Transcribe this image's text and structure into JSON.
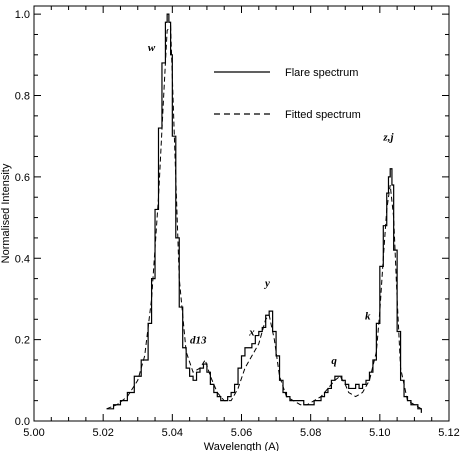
{
  "chart_data": {
    "type": "line",
    "xlabel": "Wavelength (A)",
    "ylabel": "Normalised Intensity",
    "xlim": [
      5.0,
      5.12
    ],
    "ylim": [
      0.0,
      1.02
    ],
    "x_ticks": [
      "5.00",
      "5.02",
      "5.04",
      "5.06",
      "5.08",
      "5.10",
      "5.12"
    ],
    "y_ticks": [
      "0.0",
      "0.2",
      "0.4",
      "0.6",
      "0.8",
      "1.0"
    ],
    "legend_position": "top-right",
    "series": [
      {
        "name": "Flare spectrum",
        "style": "histogram-solid",
        "x": [
          5.021,
          5.023,
          5.025,
          5.027,
          5.029,
          5.031,
          5.033,
          5.034,
          5.035,
          5.036,
          5.037,
          5.038,
          5.0385,
          5.039,
          5.0395,
          5.04,
          5.041,
          5.042,
          5.043,
          5.044,
          5.045,
          5.046,
          5.047,
          5.048,
          5.049,
          5.05,
          5.051,
          5.052,
          5.053,
          5.054,
          5.055,
          5.056,
          5.057,
          5.058,
          5.059,
          5.06,
          5.061,
          5.062,
          5.063,
          5.064,
          5.065,
          5.066,
          5.067,
          5.068,
          5.069,
          5.07,
          5.071,
          5.072,
          5.073,
          5.074,
          5.075,
          5.076,
          5.077,
          5.078,
          5.079,
          5.08,
          5.081,
          5.082,
          5.083,
          5.084,
          5.085,
          5.086,
          5.087,
          5.088,
          5.089,
          5.09,
          5.091,
          5.092,
          5.093,
          5.094,
          5.095,
          5.096,
          5.097,
          5.098,
          5.099,
          5.1,
          5.101,
          5.102,
          5.1025,
          5.103,
          5.1035,
          5.104,
          5.105,
          5.106,
          5.107,
          5.108,
          5.109,
          5.11,
          5.111,
          5.112
        ],
        "y": [
          0.03,
          0.04,
          0.05,
          0.07,
          0.11,
          0.15,
          0.24,
          0.35,
          0.52,
          0.72,
          0.88,
          0.98,
          1.0,
          0.98,
          0.9,
          0.7,
          0.45,
          0.28,
          0.18,
          0.13,
          0.11,
          0.1,
          0.12,
          0.13,
          0.14,
          0.12,
          0.09,
          0.07,
          0.06,
          0.05,
          0.05,
          0.06,
          0.07,
          0.09,
          0.13,
          0.16,
          0.18,
          0.18,
          0.19,
          0.21,
          0.22,
          0.23,
          0.26,
          0.27,
          0.22,
          0.16,
          0.1,
          0.07,
          0.06,
          0.05,
          0.05,
          0.05,
          0.05,
          0.04,
          0.04,
          0.04,
          0.05,
          0.05,
          0.06,
          0.07,
          0.08,
          0.1,
          0.11,
          0.11,
          0.1,
          0.09,
          0.08,
          0.08,
          0.09,
          0.08,
          0.09,
          0.1,
          0.12,
          0.15,
          0.24,
          0.38,
          0.48,
          0.56,
          0.6,
          0.62,
          0.58,
          0.42,
          0.22,
          0.1,
          0.06,
          0.05,
          0.04,
          0.04,
          0.03,
          0.02
        ]
      },
      {
        "name": "Fitted spectrum",
        "style": "dashed",
        "x": [
          5.021,
          5.024,
          5.027,
          5.03,
          5.032,
          5.034,
          5.036,
          5.0375,
          5.0385,
          5.0395,
          5.0405,
          5.042,
          5.044,
          5.046,
          5.048,
          5.0495,
          5.051,
          5.053,
          5.055,
          5.057,
          5.059,
          5.061,
          5.063,
          5.065,
          5.066,
          5.067,
          5.068,
          5.0695,
          5.071,
          5.073,
          5.075,
          5.077,
          5.079,
          5.081,
          5.083,
          5.085,
          5.087,
          5.0885,
          5.09,
          5.091,
          5.093,
          5.095,
          5.097,
          5.099,
          5.1,
          5.101,
          5.102,
          5.103,
          5.104,
          5.105,
          5.106,
          5.108,
          5.11,
          5.112
        ],
        "y": [
          0.03,
          0.04,
          0.06,
          0.1,
          0.16,
          0.3,
          0.55,
          0.8,
          0.96,
          0.97,
          0.72,
          0.35,
          0.17,
          0.12,
          0.13,
          0.15,
          0.11,
          0.07,
          0.05,
          0.05,
          0.08,
          0.13,
          0.16,
          0.19,
          0.22,
          0.25,
          0.26,
          0.2,
          0.11,
          0.06,
          0.05,
          0.04,
          0.04,
          0.05,
          0.06,
          0.08,
          0.1,
          0.11,
          0.09,
          0.07,
          0.06,
          0.07,
          0.1,
          0.17,
          0.27,
          0.4,
          0.52,
          0.58,
          0.5,
          0.3,
          0.13,
          0.05,
          0.04,
          0.03
        ]
      }
    ],
    "annotations": [
      {
        "text": "w",
        "x": 5.034,
        "y": 0.91
      },
      {
        "text": "d13",
        "x": 5.0475,
        "y": 0.19
      },
      {
        "text": "x",
        "x": 5.063,
        "y": 0.21
      },
      {
        "text": "y",
        "x": 5.0675,
        "y": 0.33
      },
      {
        "text": "q",
        "x": 5.0868,
        "y": 0.14
      },
      {
        "text": "k",
        "x": 5.0965,
        "y": 0.25
      },
      {
        "text": "z,j",
        "x": 5.1025,
        "y": 0.69
      }
    ]
  }
}
